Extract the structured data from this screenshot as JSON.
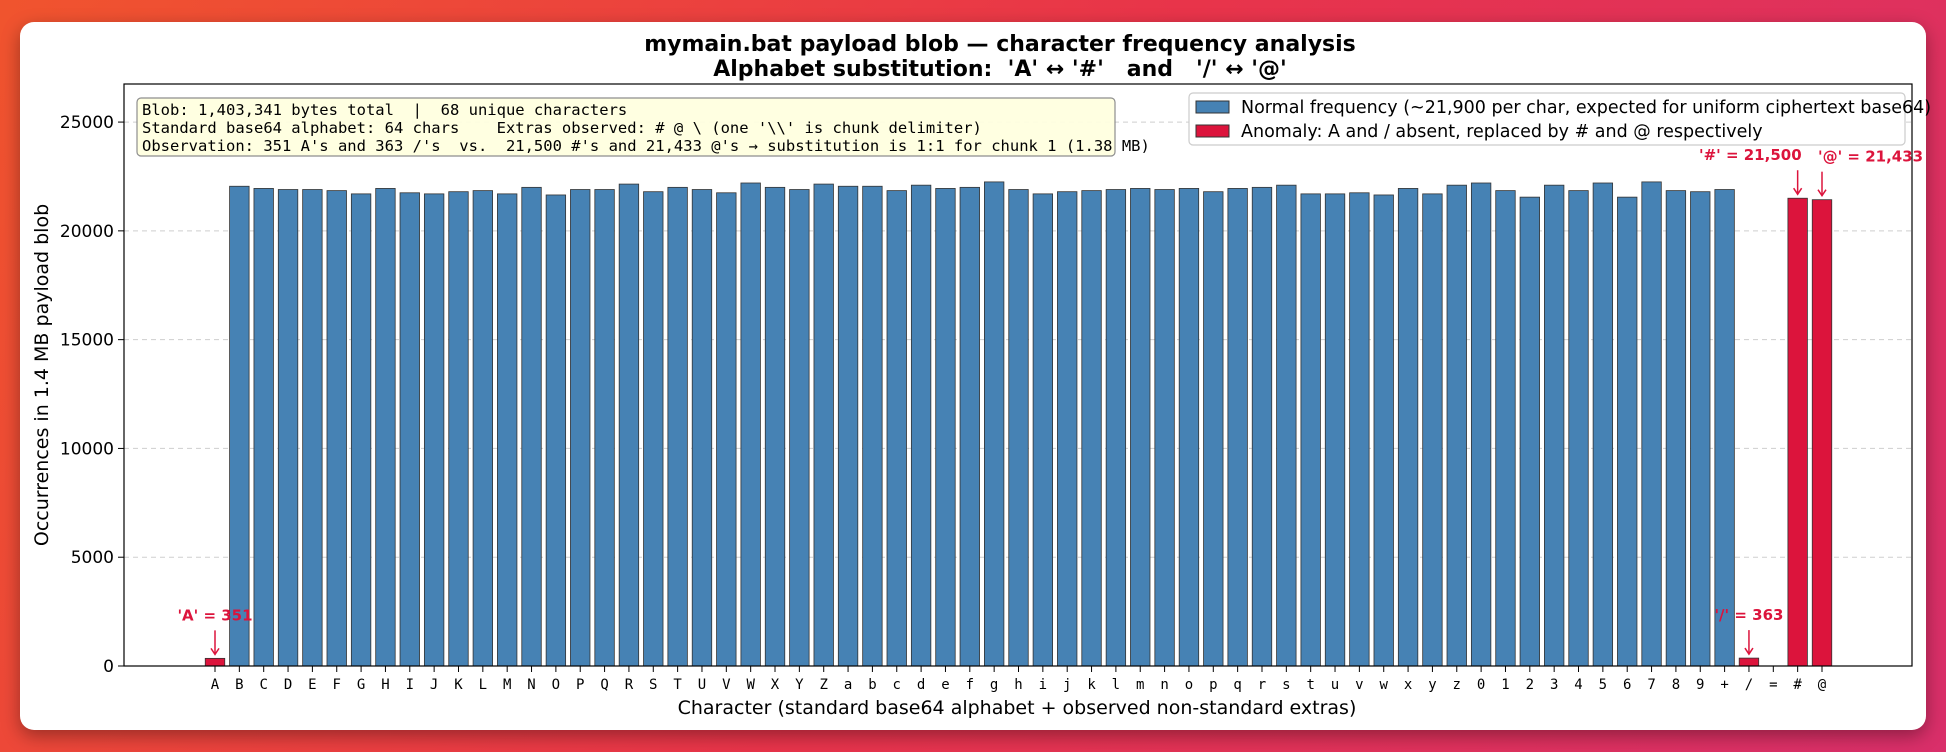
{
  "chart_data": {
    "type": "bar",
    "title": "mymain.bat payload blob — character frequency analysis",
    "subtitle": "Alphabet substitution:  'A' ↔ '#'   and   '/' ↔ '@'",
    "xlabel": "Character (standard base64 alphabet + observed non-standard extras)",
    "ylabel": "Occurrences in 1.4 MB payload blob",
    "ylim": [
      0,
      26750
    ],
    "yticks": [
      0,
      5000,
      10000,
      15000,
      20000,
      25000
    ],
    "grid": "horizontal dashed",
    "legend_placement": "top-right",
    "categories": [
      "A",
      "B",
      "C",
      "D",
      "E",
      "F",
      "G",
      "H",
      "I",
      "J",
      "K",
      "L",
      "M",
      "N",
      "O",
      "P",
      "Q",
      "R",
      "S",
      "T",
      "U",
      "V",
      "W",
      "X",
      "Y",
      "Z",
      "a",
      "b",
      "c",
      "d",
      "e",
      "f",
      "g",
      "h",
      "i",
      "j",
      "k",
      "l",
      "m",
      "n",
      "o",
      "p",
      "q",
      "r",
      "s",
      "t",
      "u",
      "v",
      "w",
      "x",
      "y",
      "z",
      "0",
      "1",
      "2",
      "3",
      "4",
      "5",
      "6",
      "7",
      "8",
      "9",
      "+",
      "/",
      "=",
      "#",
      "@"
    ],
    "values": [
      351,
      22050,
      21950,
      21900,
      21900,
      21850,
      21700,
      21950,
      21750,
      21700,
      21800,
      21850,
      21700,
      22000,
      21650,
      21900,
      21900,
      22150,
      21800,
      22000,
      21900,
      21750,
      22200,
      22000,
      21900,
      22150,
      22050,
      22050,
      21850,
      22100,
      21950,
      22000,
      22250,
      21900,
      21700,
      21800,
      21850,
      21900,
      21950,
      21900,
      21950,
      21800,
      21950,
      22000,
      22100,
      21700,
      21700,
      21750,
      21650,
      21950,
      21700,
      22100,
      22200,
      21850,
      21550,
      22100,
      21850,
      22200,
      21550,
      22250,
      21850,
      21800,
      21900,
      363,
      0,
      21500,
      21433
    ],
    "anomalies": [
      "A",
      "/",
      "#",
      "@"
    ],
    "series": [
      {
        "name": "Normal frequency (~21,900 per char, expected for uniform ciphertext base64)",
        "color": "#4682b4"
      },
      {
        "name": "Anomaly: A and / absent, replaced by # and @ respectively",
        "color": "#dc143c"
      }
    ],
    "annotations": [
      {
        "category": "A",
        "text": "'A' = 351"
      },
      {
        "category": "/",
        "text": "'/' = 363"
      },
      {
        "category": "#",
        "text": "'#' = 21,500"
      },
      {
        "category": "@",
        "text": "'@' = 21,433"
      }
    ],
    "info_box": [
      "Blob: 1,403,341 bytes total  |  68 unique characters",
      "Standard base64 alphabet: 64 chars    Extras observed: # @ \\ (one '\\\\' is chunk delimiter)",
      "Observation: 351 A's and 363 /'s  vs.  21,500 #'s and 21,433 @'s → substitution is 1:1 for chunk 1 (1.38 MB)"
    ]
  }
}
